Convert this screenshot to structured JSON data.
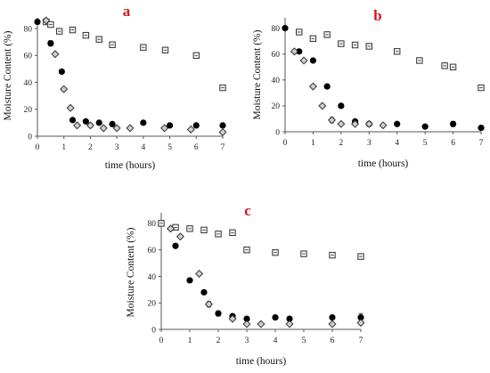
{
  "chart_data": [
    {
      "type": "scatter",
      "panel_label": "a",
      "xlabel": "time (hours)",
      "ylabel": "Moisture Content (%)",
      "xlim": [
        0,
        7
      ],
      "ylim": [
        0,
        88
      ],
      "x_ticks": [
        0,
        1,
        2,
        3,
        4,
        5,
        6,
        7
      ],
      "y_ticks": [
        0,
        20,
        40,
        60,
        80
      ],
      "grid": false,
      "series": [
        {
          "marker": "square",
          "points": [
            [
              0.33,
              85
            ],
            [
              0.5,
              83
            ],
            [
              0.83,
              78
            ],
            [
              1.33,
              79
            ],
            [
              1.83,
              75
            ],
            [
              2.33,
              72
            ],
            [
              2.83,
              68
            ],
            [
              4,
              66
            ],
            [
              4.83,
              64
            ],
            [
              6,
              60
            ],
            [
              7,
              36
            ]
          ],
          "err": [
            0,
            1,
            0,
            0,
            1,
            0,
            0,
            0,
            0,
            2,
            0
          ]
        },
        {
          "marker": "circle",
          "points": [
            [
              0,
              85
            ],
            [
              0.5,
              69
            ],
            [
              0.92,
              48
            ],
            [
              1.33,
              12
            ],
            [
              1.83,
              11
            ],
            [
              2.33,
              10
            ],
            [
              2.83,
              9
            ],
            [
              4,
              10
            ],
            [
              5,
              8
            ],
            [
              6,
              8
            ],
            [
              7,
              8
            ]
          ],
          "err": [
            1.5,
            2,
            1,
            0,
            0,
            0,
            0,
            0,
            0,
            0,
            0
          ]
        },
        {
          "marker": "diamond",
          "points": [
            [
              0.33,
              86
            ],
            [
              0.67,
              61
            ],
            [
              1,
              35
            ],
            [
              1.25,
              21
            ],
            [
              1.5,
              8
            ],
            [
              2,
              8
            ],
            [
              2.5,
              6
            ],
            [
              3,
              6
            ],
            [
              3.5,
              6
            ],
            [
              4.8,
              6
            ],
            [
              5.8,
              5
            ],
            [
              7,
              3
            ]
          ],
          "err": [
            0,
            0,
            0,
            0,
            1,
            1.5,
            0,
            0,
            0,
            0,
            0,
            0
          ]
        }
      ]
    },
    {
      "type": "scatter",
      "panel_label": "b",
      "xlabel": "time (hours)",
      "ylabel": "Moisture Content (%)",
      "xlim": [
        0,
        7
      ],
      "ylim": [
        0,
        88
      ],
      "x_ticks": [
        0,
        1,
        2,
        3,
        4,
        5,
        6,
        7
      ],
      "y_ticks": [
        0,
        20,
        40,
        60,
        80
      ],
      "grid": false,
      "series": [
        {
          "marker": "square",
          "points": [
            [
              0.5,
              77
            ],
            [
              1,
              72
            ],
            [
              1.5,
              75
            ],
            [
              2,
              68
            ],
            [
              2.5,
              67
            ],
            [
              3,
              66
            ],
            [
              4,
              62
            ],
            [
              4.8,
              55
            ],
            [
              5.7,
              51
            ],
            [
              6,
              50
            ],
            [
              7,
              34
            ]
          ],
          "err": [
            1,
            0,
            0,
            0,
            0,
            0,
            0,
            0,
            0,
            0,
            0
          ]
        },
        {
          "marker": "circle",
          "points": [
            [
              0,
              80
            ],
            [
              0.5,
              62
            ],
            [
              1,
              55
            ],
            [
              1.5,
              35
            ],
            [
              2,
              20
            ],
            [
              2.5,
              8
            ],
            [
              3,
              6
            ],
            [
              4,
              6
            ],
            [
              5,
              4
            ],
            [
              6,
              6
            ],
            [
              7,
              3
            ]
          ],
          "err": [
            0,
            0,
            0,
            0,
            0,
            0,
            0,
            0,
            1,
            2,
            0
          ]
        },
        {
          "marker": "diamond",
          "points": [
            [
              0.33,
              62
            ],
            [
              0.67,
              55
            ],
            [
              1,
              35
            ],
            [
              1.33,
              20
            ],
            [
              1.67,
              9
            ],
            [
              2,
              6
            ],
            [
              2.5,
              6
            ],
            [
              3,
              6
            ],
            [
              3.5,
              5
            ]
          ],
          "err": [
            0,
            0,
            0,
            0,
            2,
            0,
            0,
            0,
            0
          ]
        }
      ]
    },
    {
      "type": "scatter",
      "panel_label": "c",
      "xlabel": "time (hours)",
      "ylabel": "Moisture Content (%)",
      "xlim": [
        0,
        7
      ],
      "ylim": [
        0,
        88
      ],
      "x_ticks": [
        0,
        1,
        2,
        3,
        4,
        5,
        6,
        7
      ],
      "y_ticks": [
        0,
        20,
        40,
        60,
        80
      ],
      "grid": false,
      "series": [
        {
          "marker": "square",
          "points": [
            [
              0,
              80
            ],
            [
              0.5,
              77
            ],
            [
              1,
              76
            ],
            [
              1.5,
              75
            ],
            [
              2,
              72
            ],
            [
              2.5,
              73
            ],
            [
              3,
              60
            ],
            [
              4,
              58
            ],
            [
              5,
              57
            ],
            [
              6,
              56
            ],
            [
              7,
              55
            ]
          ],
          "err": [
            2,
            2,
            0,
            0,
            0,
            0,
            0,
            0,
            0,
            0,
            0
          ]
        },
        {
          "marker": "circle",
          "points": [
            [
              0.5,
              63
            ],
            [
              1,
              37
            ],
            [
              1.5,
              28
            ],
            [
              2,
              12
            ],
            [
              2.5,
              10
            ],
            [
              3,
              8
            ],
            [
              4,
              9
            ],
            [
              4.5,
              8
            ],
            [
              6,
              9
            ],
            [
              7,
              9
            ]
          ],
          "err": [
            0,
            0,
            0,
            2,
            0,
            0,
            0,
            0,
            0,
            3
          ]
        },
        {
          "marker": "diamond",
          "points": [
            [
              0.33,
              76
            ],
            [
              0.67,
              70
            ],
            [
              1.33,
              42
            ],
            [
              1.67,
              19
            ],
            [
              2.5,
              8
            ],
            [
              3,
              4
            ],
            [
              3.5,
              4
            ],
            [
              4.5,
              4
            ],
            [
              6,
              4
            ],
            [
              7,
              5
            ]
          ],
          "err": [
            0,
            0,
            0,
            2,
            0,
            0,
            0,
            0,
            0,
            0
          ]
        }
      ]
    }
  ]
}
